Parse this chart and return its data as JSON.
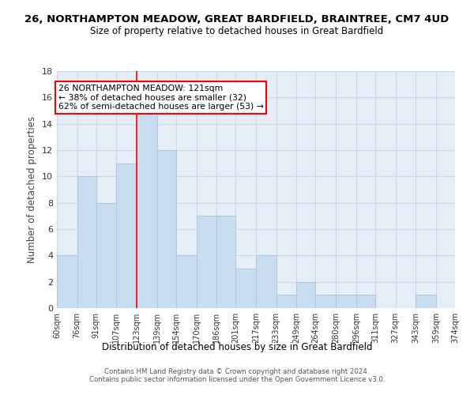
{
  "title1": "26, NORTHAMPTON MEADOW, GREAT BARDFIELD, BRAINTREE, CM7 4UD",
  "title2": "Size of property relative to detached houses in Great Bardfield",
  "xlabel": "Distribution of detached houses by size in Great Bardfield",
  "ylabel": "Number of detached properties",
  "bins": [
    60,
    76,
    91,
    107,
    123,
    139,
    154,
    170,
    186,
    201,
    217,
    233,
    249,
    264,
    280,
    296,
    311,
    327,
    343,
    359,
    374
  ],
  "counts": [
    4,
    10,
    8,
    11,
    15,
    12,
    4,
    7,
    7,
    3,
    4,
    1,
    2,
    1,
    1,
    1,
    0,
    0,
    1,
    0
  ],
  "bar_color": "#c8ddf0",
  "bar_edge_color": "#a8c4e0",
  "grid_color": "#ccd8ea",
  "bg_color": "#e8eef8",
  "property_line_x": 123,
  "annotation_text": "26 NORTHAMPTON MEADOW: 121sqm\n← 38% of detached houses are smaller (32)\n62% of semi-detached houses are larger (53) →",
  "annotation_box_color": "white",
  "annotation_box_edge": "red",
  "ylim": [
    0,
    18
  ],
  "yticks": [
    0,
    2,
    4,
    6,
    8,
    10,
    12,
    14,
    16,
    18
  ],
  "footnote": "Contains HM Land Registry data © Crown copyright and database right 2024.\nContains public sector information licensed under the Open Government Licence v3.0.",
  "tick_labels": [
    "60sqm",
    "76sqm",
    "91sqm",
    "107sqm",
    "123sqm",
    "139sqm",
    "154sqm",
    "170sqm",
    "186sqm",
    "201sqm",
    "217sqm",
    "233sqm",
    "249sqm",
    "264sqm",
    "280sqm",
    "296sqm",
    "311sqm",
    "327sqm",
    "343sqm",
    "359sqm",
    "374sqm"
  ]
}
